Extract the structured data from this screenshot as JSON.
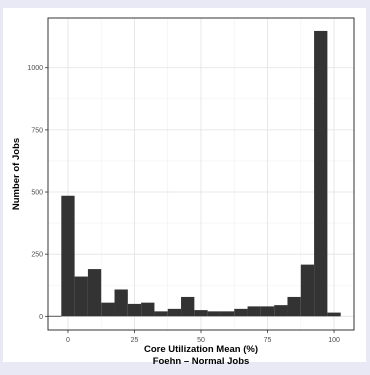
{
  "chart_data": {
    "type": "bar",
    "title": "",
    "xlabel": "Core Utilization Mean (%)",
    "subtitle": "Foehn – Normal Jobs",
    "ylabel": "Number of Jobs",
    "xlim": [
      -7.5,
      107.5
    ],
    "ylim": [
      -55,
      1200
    ],
    "xticks": [
      0,
      25,
      50,
      75,
      100
    ],
    "yticks": [
      0,
      250,
      500,
      750,
      1000
    ],
    "grid": true,
    "bin_width": 5,
    "x": [
      -5,
      0,
      5,
      10,
      15,
      20,
      25,
      30,
      35,
      40,
      45,
      50,
      55,
      60,
      65,
      70,
      75,
      80,
      85,
      90,
      95,
      100
    ],
    "values": [
      2,
      485,
      160,
      190,
      55,
      108,
      50,
      55,
      20,
      30,
      78,
      25,
      20,
      20,
      30,
      40,
      40,
      45,
      78,
      208,
      1148,
      15
    ],
    "bar_color": "#333333"
  }
}
